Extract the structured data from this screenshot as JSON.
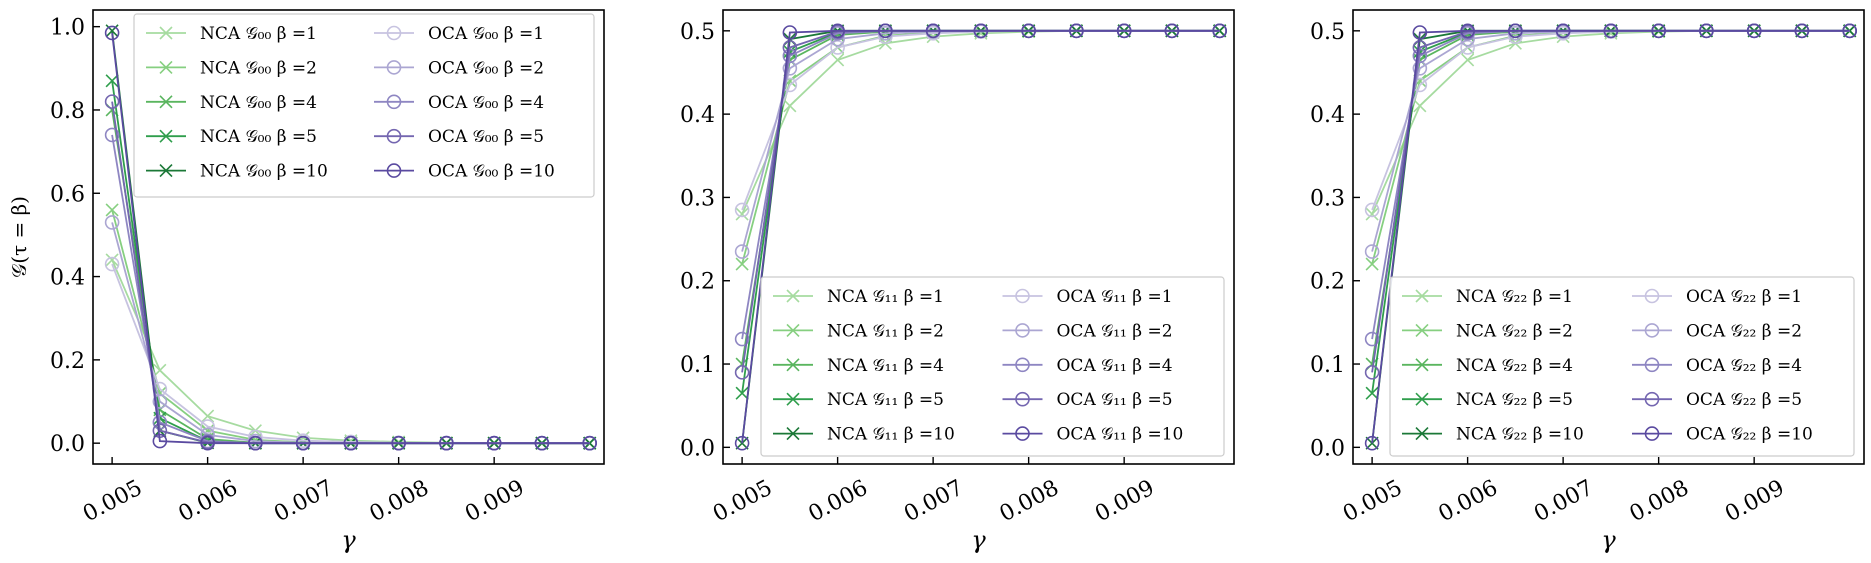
{
  "colors": {
    "nca": [
      "#a6dba0",
      "#86cf80",
      "#5ab55f",
      "#2f9e4c",
      "#1b7837"
    ],
    "oca": [
      "#c7c3e0",
      "#aba6d2",
      "#8e86c2",
      "#7466b0",
      "#5a4aa0"
    ]
  },
  "markers": {
    "nca": "x-cross",
    "oca": "open-circle"
  },
  "chart_data": [
    {
      "type": "line",
      "title": "",
      "xlabel": "γ",
      "ylabel": "𝒢(τ = β)",
      "xlim": [
        0.0048,
        0.01015
      ],
      "ylim": [
        -0.05,
        1.04
      ],
      "xticks": [
        0.005,
        0.006,
        0.007,
        0.008,
        0.009
      ],
      "xtick_labels": [
        "0.005",
        "0.006",
        "0.007",
        "0.008",
        "0.009"
      ],
      "yticks": [
        0.0,
        0.2,
        0.4,
        0.6,
        0.8,
        1.0
      ],
      "ytick_labels": [
        "0.0",
        "0.2",
        "0.4",
        "0.6",
        "0.8",
        "1.0"
      ],
      "grid": false,
      "legend_position": "top-right",
      "legend_columns": 2,
      "x": [
        0.005,
        0.0055,
        0.006,
        0.0065,
        0.007,
        0.0075,
        0.008,
        0.0085,
        0.009,
        0.0095,
        0.01
      ],
      "series": [
        {
          "name": "NCA 𝒢₀₀  β =1",
          "group": "nca",
          "values": [
            0.44,
            0.175,
            0.065,
            0.03,
            0.013,
            0.006,
            0.003,
            0.001,
            0.0005,
            0.0002,
            0.0001
          ]
        },
        {
          "name": "NCA 𝒢₀₀  β =2",
          "group": "nca",
          "values": [
            0.56,
            0.12,
            0.03,
            0.008,
            0.002,
            0.0005,
            0.0001,
            0,
            0,
            0,
            0
          ]
        },
        {
          "name": "NCA 𝒢₀₀  β =4",
          "group": "nca",
          "values": [
            0.8,
            0.08,
            0.01,
            0.001,
            0,
            0,
            0,
            0,
            0,
            0,
            0
          ]
        },
        {
          "name": "NCA 𝒢₀₀  β =5",
          "group": "nca",
          "values": [
            0.87,
            0.06,
            0.005,
            0,
            0,
            0,
            0,
            0,
            0,
            0,
            0
          ]
        },
        {
          "name": "NCA 𝒢₀₀  β =10",
          "group": "nca",
          "values": [
            0.99,
            0.03,
            0.001,
            0,
            0,
            0,
            0,
            0,
            0,
            0,
            0
          ]
        },
        {
          "name": "OCA 𝒢₀₀  β =1",
          "group": "oca",
          "values": [
            0.43,
            0.13,
            0.04,
            0.015,
            0.006,
            0.003,
            0.001,
            0.0005,
            0.0002,
            0.0001,
            0
          ]
        },
        {
          "name": "OCA 𝒢₀₀  β =2",
          "group": "oca",
          "values": [
            0.53,
            0.1,
            0.02,
            0.005,
            0.001,
            0,
            0,
            0,
            0,
            0,
            0
          ]
        },
        {
          "name": "OCA 𝒢₀₀  β =4",
          "group": "oca",
          "values": [
            0.74,
            0.05,
            0.005,
            0,
            0,
            0,
            0,
            0,
            0,
            0,
            0
          ]
        },
        {
          "name": "OCA 𝒢₀₀  β =5",
          "group": "oca",
          "values": [
            0.82,
            0.03,
            0.002,
            0,
            0,
            0,
            0,
            0,
            0,
            0,
            0
          ]
        },
        {
          "name": "OCA 𝒢₀₀  β =10",
          "group": "oca",
          "values": [
            0.985,
            0.005,
            0,
            0,
            0,
            0,
            0,
            0,
            0,
            0,
            0
          ]
        }
      ]
    },
    {
      "type": "line",
      "title": "",
      "xlabel": "γ",
      "ylabel": "",
      "xlim": [
        0.0048,
        0.01015
      ],
      "ylim": [
        -0.02,
        0.525
      ],
      "xticks": [
        0.005,
        0.006,
        0.007,
        0.008,
        0.009
      ],
      "xtick_labels": [
        "0.005",
        "0.006",
        "0.007",
        "0.008",
        "0.009"
      ],
      "yticks": [
        0.0,
        0.1,
        0.2,
        0.3,
        0.4,
        0.5
      ],
      "ytick_labels": [
        "0.0",
        "0.1",
        "0.2",
        "0.3",
        "0.4",
        "0.5"
      ],
      "grid": false,
      "legend_position": "bottom-right",
      "legend_columns": 2,
      "x": [
        0.005,
        0.0055,
        0.006,
        0.0065,
        0.007,
        0.0075,
        0.008,
        0.0085,
        0.009,
        0.0095,
        0.01
      ],
      "series": [
        {
          "name": "NCA 𝒢₁₁  β =1",
          "group": "nca",
          "values": [
            0.28,
            0.41,
            0.465,
            0.485,
            0.493,
            0.497,
            0.499,
            0.5,
            0.5,
            0.5,
            0.5
          ]
        },
        {
          "name": "NCA 𝒢₁₁  β =2",
          "group": "nca",
          "values": [
            0.22,
            0.44,
            0.48,
            0.494,
            0.498,
            0.5,
            0.5,
            0.5,
            0.5,
            0.5,
            0.5
          ]
        },
        {
          "name": "NCA 𝒢₁₁  β =4",
          "group": "nca",
          "values": [
            0.1,
            0.465,
            0.495,
            0.499,
            0.5,
            0.5,
            0.5,
            0.5,
            0.5,
            0.5,
            0.5
          ]
        },
        {
          "name": "NCA 𝒢₁₁  β =5",
          "group": "nca",
          "values": [
            0.065,
            0.475,
            0.498,
            0.5,
            0.5,
            0.5,
            0.5,
            0.5,
            0.5,
            0.5,
            0.5
          ]
        },
        {
          "name": "NCA 𝒢₁₁  β =10",
          "group": "nca",
          "values": [
            0.005,
            0.49,
            0.5,
            0.5,
            0.5,
            0.5,
            0.5,
            0.5,
            0.5,
            0.5,
            0.5
          ]
        },
        {
          "name": "OCA 𝒢₁₁  β =1",
          "group": "oca",
          "values": [
            0.285,
            0.435,
            0.48,
            0.493,
            0.497,
            0.499,
            0.5,
            0.5,
            0.5,
            0.5,
            0.5
          ]
        },
        {
          "name": "OCA 𝒢₁₁  β =2",
          "group": "oca",
          "values": [
            0.235,
            0.455,
            0.49,
            0.497,
            0.499,
            0.5,
            0.5,
            0.5,
            0.5,
            0.5,
            0.5
          ]
        },
        {
          "name": "OCA 𝒢₁₁  β =4",
          "group": "oca",
          "values": [
            0.13,
            0.47,
            0.497,
            0.5,
            0.5,
            0.5,
            0.5,
            0.5,
            0.5,
            0.5,
            0.5
          ]
        },
        {
          "name": "OCA 𝒢₁₁  β =5",
          "group": "oca",
          "values": [
            0.09,
            0.48,
            0.499,
            0.5,
            0.5,
            0.5,
            0.5,
            0.5,
            0.5,
            0.5,
            0.5
          ]
        },
        {
          "name": "OCA 𝒢₁₁  β =10",
          "group": "oca",
          "values": [
            0.005,
            0.498,
            0.5,
            0.5,
            0.5,
            0.5,
            0.5,
            0.5,
            0.5,
            0.5,
            0.5
          ]
        }
      ]
    },
    {
      "type": "line",
      "title": "",
      "xlabel": "γ",
      "ylabel": "",
      "xlim": [
        0.0048,
        0.01015
      ],
      "ylim": [
        -0.02,
        0.525
      ],
      "xticks": [
        0.005,
        0.006,
        0.007,
        0.008,
        0.009
      ],
      "xtick_labels": [
        "0.005",
        "0.006",
        "0.007",
        "0.008",
        "0.009"
      ],
      "yticks": [
        0.0,
        0.1,
        0.2,
        0.3,
        0.4,
        0.5
      ],
      "ytick_labels": [
        "0.0",
        "0.1",
        "0.2",
        "0.3",
        "0.4",
        "0.5"
      ],
      "grid": false,
      "legend_position": "bottom-right",
      "legend_columns": 2,
      "x": [
        0.005,
        0.0055,
        0.006,
        0.0065,
        0.007,
        0.0075,
        0.008,
        0.0085,
        0.009,
        0.0095,
        0.01
      ],
      "series": [
        {
          "name": "NCA 𝒢₂₂  β =1",
          "group": "nca",
          "values": [
            0.28,
            0.41,
            0.465,
            0.485,
            0.493,
            0.497,
            0.499,
            0.5,
            0.5,
            0.5,
            0.5
          ]
        },
        {
          "name": "NCA 𝒢₂₂  β =2",
          "group": "nca",
          "values": [
            0.22,
            0.44,
            0.48,
            0.494,
            0.498,
            0.5,
            0.5,
            0.5,
            0.5,
            0.5,
            0.5
          ]
        },
        {
          "name": "NCA 𝒢₂₂  β =4",
          "group": "nca",
          "values": [
            0.1,
            0.465,
            0.495,
            0.499,
            0.5,
            0.5,
            0.5,
            0.5,
            0.5,
            0.5,
            0.5
          ]
        },
        {
          "name": "NCA 𝒢₂₂  β =5",
          "group": "nca",
          "values": [
            0.065,
            0.475,
            0.498,
            0.5,
            0.5,
            0.5,
            0.5,
            0.5,
            0.5,
            0.5,
            0.5
          ]
        },
        {
          "name": "NCA 𝒢₂₂  β =10",
          "group": "nca",
          "values": [
            0.005,
            0.49,
            0.5,
            0.5,
            0.5,
            0.5,
            0.5,
            0.5,
            0.5,
            0.5,
            0.5
          ]
        },
        {
          "name": "OCA 𝒢₂₂  β =1",
          "group": "oca",
          "values": [
            0.285,
            0.435,
            0.48,
            0.493,
            0.497,
            0.499,
            0.5,
            0.5,
            0.5,
            0.5,
            0.5
          ]
        },
        {
          "name": "OCA 𝒢₂₂  β =2",
          "group": "oca",
          "values": [
            0.235,
            0.455,
            0.49,
            0.497,
            0.499,
            0.5,
            0.5,
            0.5,
            0.5,
            0.5,
            0.5
          ]
        },
        {
          "name": "OCA 𝒢₂₂  β =4",
          "group": "oca",
          "values": [
            0.13,
            0.47,
            0.497,
            0.5,
            0.5,
            0.5,
            0.5,
            0.5,
            0.5,
            0.5,
            0.5
          ]
        },
        {
          "name": "OCA 𝒢₂₂  β =5",
          "group": "oca",
          "values": [
            0.09,
            0.48,
            0.499,
            0.5,
            0.5,
            0.5,
            0.5,
            0.5,
            0.5,
            0.5,
            0.5
          ]
        },
        {
          "name": "OCA 𝒢₂₂  β =10",
          "group": "oca",
          "values": [
            0.005,
            0.498,
            0.5,
            0.5,
            0.5,
            0.5,
            0.5,
            0.5,
            0.5,
            0.5,
            0.5
          ]
        }
      ]
    }
  ]
}
